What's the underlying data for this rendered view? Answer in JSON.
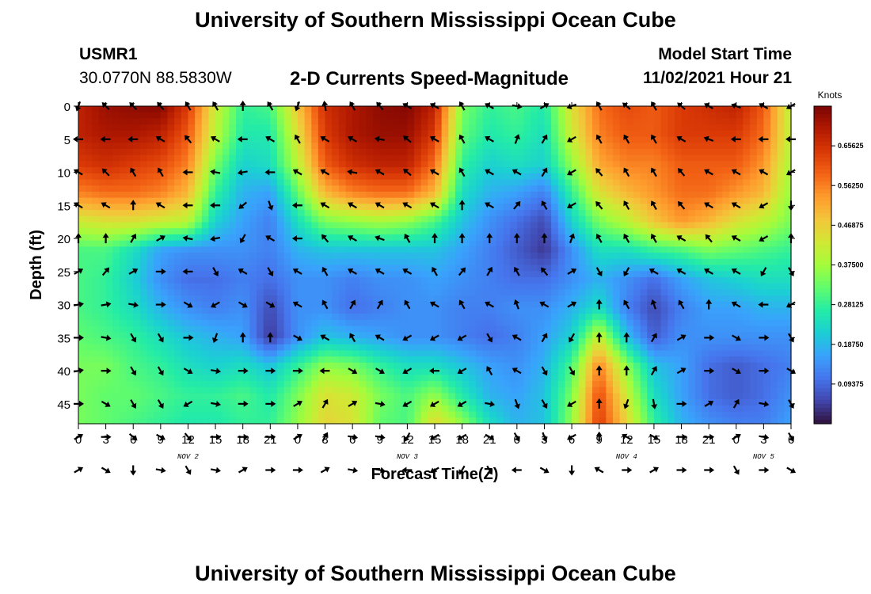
{
  "title": "University of Southern Mississippi Ocean Cube",
  "title_repeat": "University of Southern Mississippi Ocean Cube",
  "station": {
    "id": "USMR1",
    "coords": "30.0770N  88.5830W"
  },
  "model_start": {
    "label": "Model Start Time",
    "value": "11/02/2021 Hour 21"
  },
  "chart_data": {
    "type": "heatmap",
    "title": "2-D Currents Speed-Magnitude",
    "xlabel": "Forecast Time(Z)",
    "ylabel": "Depth (ft)",
    "x_range_hours": [
      0,
      78
    ],
    "x_ticks": [
      {
        "h": 0,
        "label": "0"
      },
      {
        "h": 3,
        "label": "3"
      },
      {
        "h": 6,
        "label": "6"
      },
      {
        "h": 9,
        "label": "9"
      },
      {
        "h": 12,
        "label": "12"
      },
      {
        "h": 15,
        "label": "15"
      },
      {
        "h": 18,
        "label": "18"
      },
      {
        "h": 21,
        "label": "21"
      },
      {
        "h": 24,
        "label": "0"
      },
      {
        "h": 27,
        "label": "3"
      },
      {
        "h": 30,
        "label": "6"
      },
      {
        "h": 33,
        "label": "9"
      },
      {
        "h": 36,
        "label": "12"
      },
      {
        "h": 39,
        "label": "15"
      },
      {
        "h": 42,
        "label": "18"
      },
      {
        "h": 45,
        "label": "21"
      },
      {
        "h": 48,
        "label": "0"
      },
      {
        "h": 51,
        "label": "3"
      },
      {
        "h": 54,
        "label": "6"
      },
      {
        "h": 57,
        "label": "9"
      },
      {
        "h": 60,
        "label": "12"
      },
      {
        "h": 63,
        "label": "15"
      },
      {
        "h": 66,
        "label": "18"
      },
      {
        "h": 69,
        "label": "21"
      },
      {
        "h": 72,
        "label": "0"
      },
      {
        "h": 75,
        "label": "3"
      },
      {
        "h": 78,
        "label": "6"
      }
    ],
    "date_labels": [
      {
        "h": 12,
        "label": "NOV 2"
      },
      {
        "h": 36,
        "label": "NOV 3"
      },
      {
        "h": 60,
        "label": "NOV 4"
      },
      {
        "h": 75,
        "label": "NOV 5"
      }
    ],
    "y_range_ft": [
      0,
      48
    ],
    "y_ticks": [
      0,
      5,
      10,
      15,
      20,
      25,
      30,
      35,
      40,
      45
    ],
    "colorbar": {
      "unit": "Knots",
      "min": 0,
      "max": 0.75,
      "ticks": [
        {
          "v": 0.09375,
          "label": "0.09375"
        },
        {
          "v": 0.1875,
          "label": "0.18750"
        },
        {
          "v": 0.28125,
          "label": "0.28125"
        },
        {
          "v": 0.375,
          "label": "0.37500"
        },
        {
          "v": 0.46875,
          "label": "0.46875"
        },
        {
          "v": 0.5625,
          "label": "0.56250"
        },
        {
          "v": 0.65625,
          "label": "0.65625"
        }
      ],
      "colors": [
        "#30123b",
        "#4145ab",
        "#4675ed",
        "#39a2fc",
        "#1bcfd4",
        "#24eca6",
        "#61fc6c",
        "#a4fc3b",
        "#d1e834",
        "#f3c63a",
        "#fe9b2d",
        "#f36315",
        "#d93806",
        "#b11901",
        "#7a0402"
      ]
    },
    "speed_knots": [
      [
        0.68,
        0.72,
        0.73,
        0.74,
        0.64,
        0.42,
        0.28,
        0.3,
        0.48,
        0.66,
        0.7,
        0.73,
        0.74,
        0.68,
        0.34,
        0.28,
        0.3,
        0.26,
        0.44,
        0.58,
        0.62,
        0.6,
        0.64,
        0.66,
        0.68,
        0.6,
        0.4
      ],
      [
        0.68,
        0.7,
        0.7,
        0.68,
        0.6,
        0.4,
        0.26,
        0.26,
        0.44,
        0.64,
        0.7,
        0.72,
        0.72,
        0.64,
        0.32,
        0.26,
        0.28,
        0.24,
        0.42,
        0.56,
        0.6,
        0.6,
        0.64,
        0.64,
        0.64,
        0.58,
        0.4
      ],
      [
        0.64,
        0.66,
        0.64,
        0.62,
        0.56,
        0.34,
        0.22,
        0.24,
        0.4,
        0.6,
        0.66,
        0.68,
        0.68,
        0.58,
        0.28,
        0.22,
        0.24,
        0.22,
        0.36,
        0.52,
        0.56,
        0.56,
        0.6,
        0.6,
        0.6,
        0.54,
        0.38
      ],
      [
        0.56,
        0.58,
        0.58,
        0.56,
        0.5,
        0.28,
        0.18,
        0.16,
        0.32,
        0.5,
        0.56,
        0.58,
        0.58,
        0.5,
        0.24,
        0.18,
        0.16,
        0.12,
        0.28,
        0.44,
        0.5,
        0.54,
        0.58,
        0.58,
        0.54,
        0.5,
        0.36
      ],
      [
        0.42,
        0.44,
        0.44,
        0.42,
        0.4,
        0.22,
        0.16,
        0.12,
        0.24,
        0.34,
        0.36,
        0.38,
        0.36,
        0.3,
        0.2,
        0.14,
        0.1,
        0.06,
        0.22,
        0.34,
        0.4,
        0.48,
        0.54,
        0.5,
        0.44,
        0.4,
        0.34
      ],
      [
        0.3,
        0.3,
        0.24,
        0.16,
        0.14,
        0.14,
        0.14,
        0.12,
        0.18,
        0.2,
        0.2,
        0.2,
        0.2,
        0.2,
        0.16,
        0.12,
        0.08,
        0.04,
        0.14,
        0.24,
        0.24,
        0.28,
        0.3,
        0.34,
        0.32,
        0.3,
        0.28
      ],
      [
        0.3,
        0.28,
        0.22,
        0.14,
        0.1,
        0.1,
        0.12,
        0.1,
        0.14,
        0.14,
        0.12,
        0.14,
        0.14,
        0.16,
        0.14,
        0.12,
        0.1,
        0.1,
        0.14,
        0.18,
        0.14,
        0.1,
        0.16,
        0.2,
        0.22,
        0.24,
        0.24
      ],
      [
        0.3,
        0.28,
        0.24,
        0.18,
        0.14,
        0.12,
        0.14,
        0.06,
        0.14,
        0.14,
        0.1,
        0.12,
        0.14,
        0.14,
        0.12,
        0.12,
        0.14,
        0.14,
        0.18,
        0.24,
        0.12,
        0.06,
        0.12,
        0.16,
        0.16,
        0.18,
        0.18
      ],
      [
        0.32,
        0.3,
        0.28,
        0.24,
        0.2,
        0.18,
        0.16,
        0.04,
        0.14,
        0.2,
        0.18,
        0.16,
        0.14,
        0.14,
        0.12,
        0.1,
        0.12,
        0.16,
        0.22,
        0.42,
        0.2,
        0.08,
        0.14,
        0.14,
        0.14,
        0.14,
        0.14
      ],
      [
        0.34,
        0.34,
        0.3,
        0.28,
        0.24,
        0.22,
        0.24,
        0.2,
        0.28,
        0.36,
        0.34,
        0.28,
        0.24,
        0.24,
        0.2,
        0.16,
        0.14,
        0.18,
        0.3,
        0.56,
        0.36,
        0.2,
        0.16,
        0.1,
        0.08,
        0.1,
        0.12
      ],
      [
        0.34,
        0.32,
        0.32,
        0.3,
        0.28,
        0.28,
        0.3,
        0.26,
        0.34,
        0.44,
        0.42,
        0.34,
        0.3,
        0.36,
        0.26,
        0.18,
        0.16,
        0.2,
        0.34,
        0.62,
        0.42,
        0.24,
        0.16,
        0.1,
        0.08,
        0.1,
        0.14
      ],
      [
        0.34,
        0.32,
        0.3,
        0.28,
        0.26,
        0.26,
        0.28,
        0.28,
        0.36,
        0.46,
        0.44,
        0.32,
        0.3,
        0.46,
        0.36,
        0.24,
        0.18,
        0.2,
        0.36,
        0.64,
        0.46,
        0.28,
        0.18,
        0.14,
        0.12,
        0.12,
        0.16
      ]
    ],
    "direction_deg": [
      [
        200,
        315,
        315,
        320,
        330,
        330,
        0,
        330,
        200,
        350,
        330,
        320,
        300,
        300,
        330,
        300,
        100,
        60,
        250,
        330,
        310,
        330,
        310,
        300,
        290,
        300,
        240
      ],
      [
        270,
        270,
        270,
        300,
        320,
        300,
        270,
        300,
        330,
        300,
        300,
        280,
        310,
        300,
        330,
        300,
        20,
        30,
        240,
        330,
        330,
        330,
        300,
        290,
        270,
        270,
        270
      ],
      [
        300,
        315,
        330,
        330,
        270,
        280,
        260,
        270,
        300,
        300,
        280,
        300,
        310,
        300,
        330,
        300,
        300,
        30,
        240,
        320,
        330,
        330,
        320,
        300,
        300,
        300,
        240
      ],
      [
        300,
        300,
        0,
        300,
        270,
        270,
        230,
        160,
        270,
        300,
        300,
        300,
        300,
        300,
        0,
        300,
        40,
        330,
        240,
        320,
        330,
        330,
        320,
        300,
        300,
        240,
        180
      ],
      [
        0,
        0,
        30,
        60,
        280,
        260,
        210,
        300,
        270,
        320,
        300,
        290,
        330,
        0,
        0,
        0,
        0,
        0,
        20,
        330,
        330,
        330,
        300,
        320,
        300,
        240,
        0
      ],
      [
        60,
        40,
        60,
        90,
        270,
        150,
        300,
        150,
        300,
        330,
        300,
        300,
        300,
        330,
        40,
        30,
        330,
        320,
        60,
        150,
        210,
        300,
        300,
        300,
        300,
        210,
        150
      ],
      [
        80,
        80,
        100,
        90,
        120,
        240,
        120,
        120,
        300,
        330,
        30,
        30,
        330,
        300,
        330,
        300,
        340,
        300,
        60,
        0,
        330,
        340,
        330,
        0,
        300,
        270,
        240
      ],
      [
        90,
        100,
        150,
        150,
        90,
        200,
        0,
        0,
        120,
        300,
        330,
        300,
        240,
        240,
        240,
        150,
        300,
        30,
        210,
        0,
        0,
        30,
        60,
        90,
        120,
        90,
        150
      ],
      [
        80,
        90,
        150,
        150,
        120,
        100,
        90,
        90,
        90,
        270,
        120,
        120,
        240,
        270,
        240,
        330,
        300,
        150,
        150,
        0,
        0,
        30,
        60,
        90,
        120,
        90,
        120
      ],
      [
        90,
        120,
        150,
        150,
        240,
        100,
        90,
        90,
        60,
        30,
        60,
        100,
        240,
        240,
        240,
        100,
        160,
        150,
        240,
        0,
        200,
        170,
        90,
        60,
        30,
        100,
        150
      ],
      [
        60,
        90,
        130,
        120,
        140,
        90,
        90,
        90,
        60,
        30,
        100,
        100,
        210,
        240,
        240,
        120,
        150,
        160,
        240,
        0,
        300,
        120,
        90,
        90,
        60,
        100,
        150
      ],
      [
        60,
        120,
        180,
        100,
        150,
        100,
        60,
        90,
        90,
        60,
        100,
        100,
        270,
        240,
        210,
        150,
        270,
        120,
        180,
        300,
        90,
        60,
        90,
        90,
        150,
        90,
        120
      ]
    ]
  }
}
